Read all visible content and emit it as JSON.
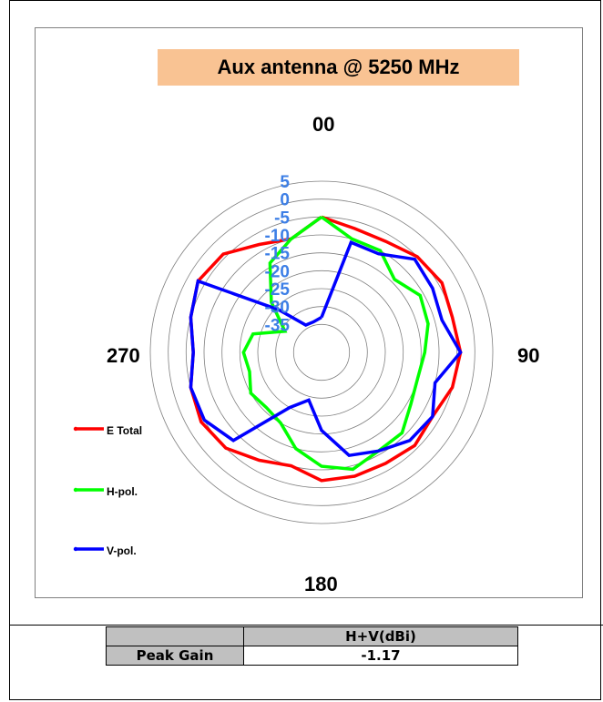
{
  "chart_data": {
    "type": "polar-line",
    "title": "Aux antenna  @ 5250 MHz",
    "direction_labels": {
      "top": "00",
      "right": "90",
      "bottom": "180",
      "left": "270"
    },
    "radial_ticks": [
      "5",
      "0",
      "-5",
      "-10",
      "-15",
      "-20",
      "-25",
      "-30",
      "-35"
    ],
    "radial_range": [
      -40,
      5
    ],
    "angles_deg": [
      0,
      15,
      30,
      45,
      60,
      75,
      90,
      105,
      120,
      135,
      150,
      165,
      180,
      195,
      210,
      225,
      240,
      255,
      270,
      285,
      300,
      315,
      330,
      345
    ],
    "series": [
      {
        "name": "E Total",
        "color": "#ff0000",
        "values": [
          -5,
          -7,
          -7,
          -5,
          -4,
          -5,
          -4,
          -5,
          -7,
          -6,
          -7,
          -7,
          -7,
          -10,
          -8,
          -5,
          -4,
          -5,
          -7,
          -5,
          -3,
          -4,
          -8,
          -10
        ]
      },
      {
        "name": "H-pol.",
        "color": "#00ff00",
        "values": [
          -5,
          -10,
          -10,
          -14,
          -11,
          -12,
          -14,
          -15,
          -14,
          -11,
          -11,
          -9,
          -11,
          -15,
          -20,
          -21,
          -20,
          -22,
          -21,
          -23,
          -31,
          -23,
          -14,
          -10
        ]
      },
      {
        "name": "V-pol.",
        "color": "#0000ff",
        "values": [
          -33,
          -11,
          -11,
          -6,
          -7,
          -8,
          -4,
          -10,
          -7,
          -8,
          -11,
          -13,
          -21,
          -29,
          -25,
          -8,
          -5,
          -5,
          -7,
          -5,
          -3,
          -26,
          -34,
          -34
        ]
      }
    ],
    "legend_position": "left"
  },
  "table": {
    "header_blank": "",
    "header_value": "H+V(dBi)",
    "row_label": "Peak Gain",
    "row_value": "-1.17"
  }
}
